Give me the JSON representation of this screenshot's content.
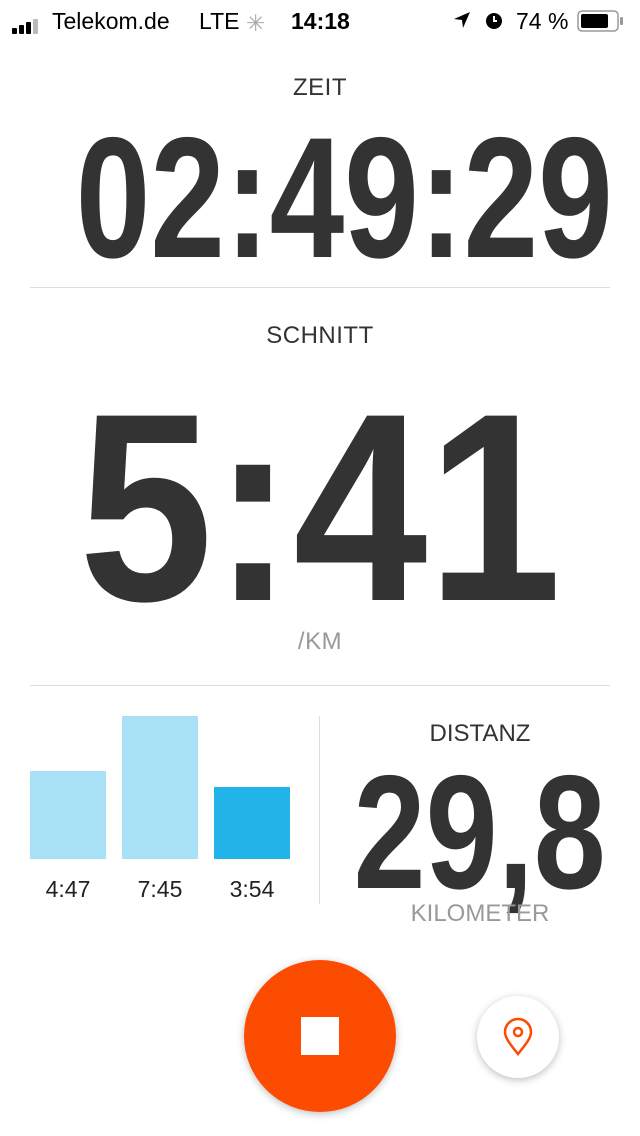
{
  "status_bar": {
    "carrier": "Telekom.de",
    "network": "LTE",
    "time": "14:18",
    "battery": "74 %",
    "battery_level": 0.74,
    "icons": [
      "signal-icon",
      "loading-spinner-icon",
      "location-arrow-icon",
      "alarm-icon",
      "battery-icon"
    ]
  },
  "zeit": {
    "label": "ZEIT",
    "value": "02:49:29"
  },
  "schnitt": {
    "label": "SCHNITT",
    "value": "5:41",
    "unit": "/KM"
  },
  "splits": {
    "labels": [
      "4:47",
      "7:45",
      "3:54"
    ],
    "seconds": [
      287,
      465,
      234
    ],
    "colors": [
      "#a8e1f5",
      "#a8e1f5",
      "#22b4e8"
    ]
  },
  "distanz": {
    "label": "DISTANZ",
    "value": "29,8",
    "unit": "KILOMETER"
  },
  "controls": {
    "stop_color": "#fc4c02",
    "stop_icon": "stop-icon",
    "location_icon": "map-pin-icon"
  }
}
